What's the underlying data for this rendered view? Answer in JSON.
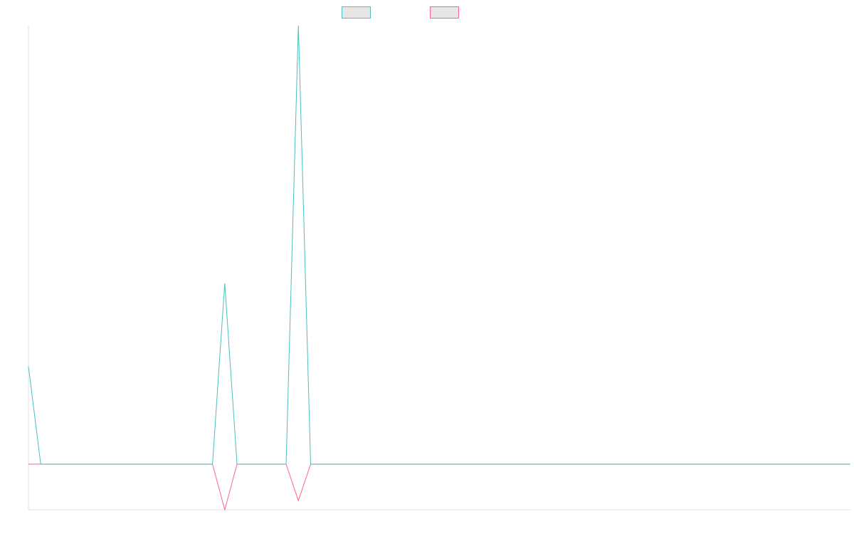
{
  "chart_data": {
    "type": "line",
    "title": "",
    "xlabel": "",
    "ylabel": "",
    "x": [
      0,
      1,
      2,
      3,
      4,
      5,
      6,
      7,
      8,
      9,
      10,
      11,
      12,
      13,
      14,
      15,
      16,
      17,
      18,
      19,
      20,
      21,
      22,
      23,
      24,
      25,
      26,
      27,
      28,
      29,
      30,
      31,
      32,
      33,
      34,
      35,
      36,
      37,
      38,
      39,
      40,
      41,
      42,
      43,
      44,
      45,
      46,
      47,
      48,
      49,
      50,
      51,
      52,
      53,
      54,
      55,
      56,
      57,
      58,
      59,
      60,
      61,
      62,
      63,
      64,
      65,
      66,
      67
    ],
    "ylim": [
      -5,
      48
    ],
    "grid": false,
    "legend": "top-center",
    "series": [
      {
        "name": "",
        "color": "#4bc0c0",
        "values": [
          10.7,
          0,
          0,
          0,
          0,
          0,
          0,
          0,
          0,
          0,
          0,
          0,
          0,
          0,
          0,
          0,
          19.8,
          0,
          0,
          0,
          0,
          0,
          48,
          0,
          0,
          0,
          0,
          0,
          0,
          0,
          0,
          0,
          0,
          0,
          0,
          0,
          0,
          0,
          0,
          0,
          0,
          0,
          0,
          0,
          0,
          0,
          0,
          0,
          0,
          0,
          0,
          0,
          0,
          0,
          0,
          0,
          0,
          0,
          0,
          0,
          0,
          0,
          0,
          0,
          0,
          0,
          0,
          0
        ]
      },
      {
        "name": "",
        "color": "#ff6384",
        "values": [
          0,
          0,
          0,
          0,
          0,
          0,
          0,
          0,
          0,
          0,
          0,
          0,
          0,
          0,
          0,
          0,
          -5,
          0,
          0,
          0,
          0,
          0,
          -4,
          0,
          0,
          0,
          0,
          0,
          0,
          0,
          0,
          0,
          0,
          0,
          0,
          0,
          0,
          0,
          0,
          0,
          0,
          0,
          0,
          0,
          0,
          0,
          0,
          0,
          0,
          0,
          0,
          0,
          0,
          0,
          0,
          0,
          0,
          0,
          0,
          0,
          0,
          0,
          0,
          0,
          0,
          0,
          0,
          0
        ]
      }
    ]
  }
}
